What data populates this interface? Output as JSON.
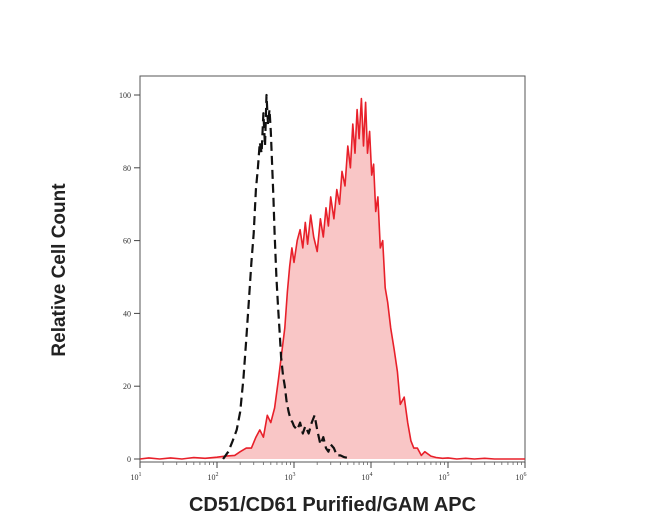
{
  "chart_data": {
    "type": "area",
    "title": "",
    "xlabel": "CD51/CD61 Purified/GAM APC",
    "ylabel": "Relative Cell Count",
    "xscale": "log",
    "xlim": [
      10,
      1000000
    ],
    "ylim": [
      0,
      100
    ],
    "x_ticks": [
      "10^1",
      "10^2",
      "10^3",
      "10^4",
      "10^5",
      "10^6"
    ],
    "y_ticks": [
      "0",
      "20",
      "40",
      "60",
      "80",
      "100"
    ],
    "grid": false,
    "legend": "none",
    "series": [
      {
        "style": "filled red",
        "color": "#e8202a",
        "fill": "#f9c6c6",
        "x": [
          10,
          13,
          18,
          25,
          35,
          50,
          70,
          100,
          130,
          170,
          200,
          240,
          280,
          320,
          360,
          400,
          450,
          500,
          560,
          630,
          700,
          760,
          820,
          880,
          940,
          1000,
          1100,
          1200,
          1300,
          1400,
          1500,
          1650,
          1800,
          2000,
          2200,
          2400,
          2600,
          2800,
          3000,
          3300,
          3600,
          3900,
          4200,
          4600,
          5000,
          5400,
          5800,
          6200,
          6600,
          7000,
          7500,
          8000,
          8500,
          9000,
          9600,
          10200,
          10800,
          11500,
          12300,
          13200,
          14200,
          15300,
          16500,
          18000,
          20000,
          22000,
          24000,
          27000,
          30000,
          33000,
          36000,
          40000,
          45000,
          50000,
          60000,
          70000,
          85000,
          100000,
          130000,
          170000,
          220000,
          300000,
          400000,
          500000,
          700000,
          1000000
        ],
        "y": [
          0,
          0.3,
          0,
          0.3,
          0,
          0.4,
          0.2,
          0.5,
          0.8,
          1,
          2,
          3,
          3,
          6,
          8,
          6,
          12,
          10,
          14,
          22,
          30,
          36,
          46,
          53,
          58,
          54,
          60,
          63,
          58,
          65,
          59,
          67,
          61,
          57,
          66,
          61,
          69,
          64,
          72,
          66,
          74,
          70,
          79,
          75,
          86,
          80,
          92,
          84,
          96,
          88,
          99,
          86,
          98,
          84,
          90,
          78,
          81,
          68,
          72,
          58,
          60,
          47,
          43,
          36,
          30,
          24,
          15,
          17,
          10,
          5,
          3,
          3,
          1,
          2,
          0.8,
          0.4,
          0.2,
          0.3,
          0,
          0.2,
          0,
          0.2,
          0,
          0,
          0,
          0
        ]
      },
      {
        "style": "dashed black",
        "color": "#111111",
        "x": [
          120,
          140,
          160,
          180,
          200,
          220,
          240,
          260,
          280,
          300,
          320,
          340,
          360,
          380,
          400,
          420,
          440,
          460,
          480,
          500,
          520,
          540,
          560,
          590,
          620,
          650,
          680,
          720,
          760,
          800,
          850,
          900,
          960,
          1000,
          1100,
          1200,
          1300,
          1400,
          1550,
          1700,
          1850,
          2000,
          2200,
          2400,
          2600,
          2800,
          3000,
          3300,
          3600,
          4000,
          4500,
          5000,
          5600
        ],
        "y": [
          0,
          2,
          5,
          8,
          13,
          22,
          33,
          44,
          54,
          62,
          74,
          80,
          87,
          84,
          95,
          86,
          100,
          92,
          96,
          90,
          81,
          72,
          62,
          50,
          42,
          35,
          28,
          23,
          20,
          16,
          13,
          11,
          10,
          9,
          8,
          10,
          7,
          9,
          7,
          10,
          12,
          8,
          4,
          6,
          3,
          2,
          4,
          3,
          1,
          1,
          0.5,
          0.3,
          0
        ]
      }
    ]
  }
}
